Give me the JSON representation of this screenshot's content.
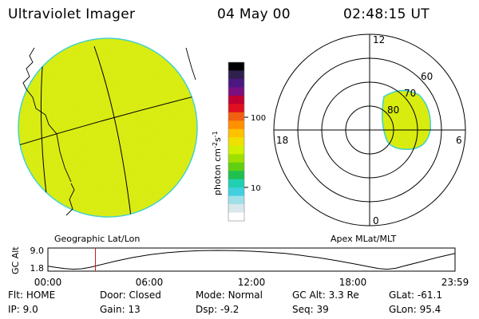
{
  "header": {
    "title": "Ultraviolet Imager",
    "date": "04 May 00",
    "time": "02:48:15 UT"
  },
  "colors": {
    "disk_fill": "#d8ec10",
    "disk_edge": "#40d0d0",
    "grid": "#000000",
    "track": "#000000",
    "marker": "#c02020"
  },
  "panels": {
    "geo_label": "Geographic Lat/Lon",
    "apex_label": "Apex MLat/MLT"
  },
  "polar": {
    "mlt_labels": [
      "12",
      "18",
      "6",
      "0"
    ],
    "mlat_labels": [
      "80",
      "70",
      "60"
    ]
  },
  "colorbar": {
    "unit": "photon cm",
    "unit_exp1": "-2",
    "unit_mid": "s",
    "unit_exp2": "-1",
    "tick_labels": [
      "100",
      "10"
    ],
    "colors": [
      "#000000",
      "#302050",
      "#4a1880",
      "#7a1080",
      "#c00030",
      "#e01020",
      "#f06010",
      "#ff9000",
      "#ffc000",
      "#f0e000",
      "#d0f000",
      "#a0e000",
      "#60d010",
      "#20c050",
      "#20d0b0",
      "#40d0e0",
      "#a0e0e8",
      "#d8e8ec",
      "#ffffff"
    ]
  },
  "info": {
    "row1": [
      {
        "label": "Flt:",
        "value": "HOME"
      },
      {
        "label": "Door:",
        "value": "Closed"
      },
      {
        "label": "Mode:",
        "value": "Normal"
      },
      {
        "label": "GC Alt:",
        "value": "3.3 Re"
      },
      {
        "label": "GLat:",
        "value": "-61.1"
      }
    ],
    "row2": [
      {
        "label": "IP:",
        "value": "9.0"
      },
      {
        "label": "Gain:",
        "value": "13"
      },
      {
        "label": "Dsp:",
        "value": "-9.2"
      },
      {
        "label": "Seq:",
        "value": "39"
      },
      {
        "label": "GLon:",
        "value": "95.4"
      }
    ]
  },
  "chart_data": {
    "type": "line",
    "ylabel": "GC Alt",
    "x_tick_labels": [
      "00:00",
      "06:00",
      "12:00",
      "18:00",
      "23:59"
    ],
    "y_tick_labels": [
      "9.0",
      "1.8"
    ],
    "ylim": [
      1.8,
      9.0
    ],
    "xlim_hours": [
      0,
      24
    ],
    "current_time_hours": 2.8,
    "series": [
      {
        "x_hours": [
          0,
          0.5,
          1,
          1.5,
          2,
          2.5,
          3,
          4,
          5,
          6,
          7,
          8,
          9,
          10,
          11,
          12,
          13,
          14,
          15,
          16,
          17,
          18,
          19,
          19.5,
          20,
          20.5,
          21,
          22,
          23,
          24
        ],
        "values": [
          2.8,
          2.3,
          1.9,
          1.6,
          1.8,
          2.4,
          3.2,
          4.8,
          6.2,
          7.3,
          8.1,
          8.6,
          8.9,
          9.0,
          8.9,
          8.7,
          8.3,
          7.8,
          7.0,
          6.1,
          5.0,
          3.8,
          2.5,
          1.9,
          1.6,
          2.0,
          2.9,
          4.6,
          6.3,
          7.8
        ]
      }
    ]
  }
}
